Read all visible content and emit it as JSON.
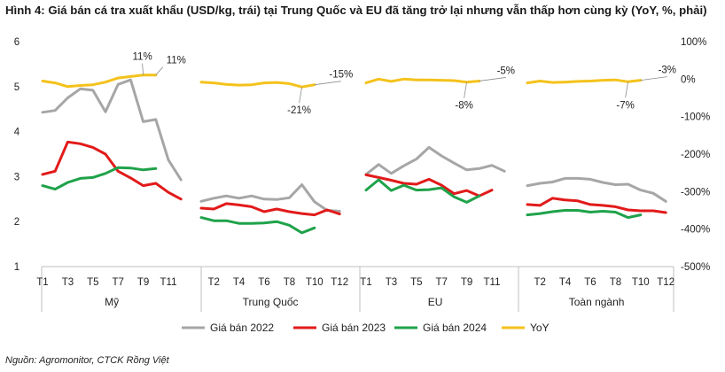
{
  "chart_data": {
    "type": "line",
    "title": "Hình 4: Giá bán cá tra xuất khẩu (USD/kg, trái) tại Trung Quốc và EU đã tăng trở lại nhưng vẫn thấp hơn cùng kỳ (YoY, %, phải)",
    "source": "Nguồn: Agromonitor, CTCK Rồng Việt",
    "y_left": {
      "ticks": [
        "6",
        "5",
        "4",
        "3",
        "2",
        "1"
      ],
      "range": [
        1,
        6
      ]
    },
    "y_right": {
      "ticks": [
        "100%",
        "0%",
        "-100%",
        "-200%",
        "-300%",
        "-400%",
        "-500%"
      ],
      "range": [
        -500,
        100
      ]
    },
    "grid": false,
    "legend_position": "bottom",
    "panels": [
      {
        "name": "Mỹ",
        "month_ticks": [
          "T1",
          "T3",
          "T5",
          "T7",
          "T9",
          "T11"
        ],
        "tick_months": [
          1,
          3,
          5,
          7,
          9,
          11
        ],
        "series": {
          "Giá bán 2022": [
            4.43,
            4.47,
            4.75,
            4.95,
            4.92,
            4.44,
            5.05,
            5.15,
            4.22,
            4.27,
            3.37,
            2.93
          ],
          "Giá bán 2023": [
            3.05,
            3.12,
            3.77,
            3.73,
            3.65,
            3.5,
            3.12,
            2.97,
            2.8,
            2.85,
            2.65,
            2.5
          ],
          "Giá bán 2024": [
            2.8,
            2.72,
            2.87,
            2.96,
            2.98,
            3.07,
            3.2,
            3.19,
            3.15,
            3.18,
            null,
            null
          ],
          "YoY": [
            -5,
            -10,
            -20,
            -17,
            -15,
            -8,
            3,
            7,
            11,
            11,
            null,
            null
          ]
        },
        "annotations": [
          {
            "text": "11%",
            "month": 9,
            "value": 11
          },
          {
            "text": "11%",
            "month": 10,
            "value": 11
          }
        ]
      },
      {
        "name": "Trung Quốc",
        "month_ticks": [
          "T2",
          "T4",
          "T6",
          "T8",
          "T10",
          "T12"
        ],
        "tick_months": [
          2,
          4,
          6,
          8,
          10,
          12
        ],
        "series": {
          "Giá bán 2022": [
            2.45,
            2.52,
            2.57,
            2.52,
            2.57,
            2.5,
            2.49,
            2.53,
            2.82,
            2.44,
            2.25,
            2.23
          ],
          "Giá bán 2023": [
            2.3,
            2.28,
            2.4,
            2.37,
            2.33,
            2.22,
            2.28,
            2.22,
            2.18,
            2.15,
            2.26,
            2.17
          ],
          "Giá bán 2024": [
            2.09,
            2.02,
            2.02,
            1.96,
            1.96,
            1.97,
            2.0,
            1.92,
            1.75,
            1.86,
            null,
            null
          ],
          "YoY": [
            -8,
            -10,
            -14,
            -16,
            -15,
            -10,
            -9,
            -12,
            -21,
            -15,
            null,
            null
          ]
        },
        "annotations": [
          {
            "text": "-21%",
            "month": 9,
            "value": -21
          },
          {
            "text": "-15%",
            "month": 10,
            "value": -15
          }
        ]
      },
      {
        "name": "EU",
        "month_ticks": [
          "T1",
          "T3",
          "T5",
          "T7",
          "T9",
          "T11"
        ],
        "tick_months": [
          1,
          3,
          5,
          7,
          9,
          11
        ],
        "series": {
          "Giá bán 2022": [
            3.05,
            3.27,
            3.07,
            3.24,
            3.39,
            3.65,
            3.46,
            3.3,
            3.15,
            3.18,
            3.25,
            3.12
          ],
          "Giá bán 2023": [
            3.04,
            2.98,
            2.92,
            2.85,
            2.83,
            2.94,
            2.81,
            2.62,
            2.69,
            2.57,
            2.7,
            null
          ],
          "Giá bán 2024": [
            2.7,
            2.93,
            2.69,
            2.81,
            2.7,
            2.71,
            2.75,
            2.55,
            2.43,
            2.57,
            null,
            null
          ],
          "YoY": [
            -10,
            0,
            -6,
            0,
            -2,
            -2,
            -3,
            -4,
            -8,
            -5,
            null,
            null
          ]
        },
        "annotations": [
          {
            "text": "-8%",
            "month": 9,
            "value": -8
          },
          {
            "text": "-5%",
            "month": 10,
            "value": -5
          }
        ]
      },
      {
        "name": "Toàn ngành",
        "month_ticks": [
          "T2",
          "T4",
          "T6",
          "T8",
          "T10",
          "T12"
        ],
        "tick_months": [
          2,
          4,
          6,
          8,
          10,
          12
        ],
        "series": {
          "Giá bán 2022": [
            2.8,
            2.85,
            2.88,
            2.96,
            2.96,
            2.94,
            2.87,
            2.82,
            2.83,
            2.7,
            2.63,
            2.45
          ],
          "Giá bán 2023": [
            2.38,
            2.36,
            2.52,
            2.48,
            2.46,
            2.38,
            2.36,
            2.33,
            2.26,
            2.24,
            2.24,
            2.2
          ],
          "Giá bán 2024": [
            2.15,
            2.18,
            2.22,
            2.25,
            2.25,
            2.21,
            2.23,
            2.21,
            2.09,
            2.15,
            null,
            null
          ],
          "YoY": [
            -10,
            -5,
            -9,
            -8,
            -6,
            -5,
            -3,
            -2,
            -7,
            -3,
            null,
            null
          ]
        },
        "annotations": [
          {
            "text": "-7%",
            "month": 9,
            "value": -7
          },
          {
            "text": "-3%",
            "month": 10,
            "value": -3
          }
        ]
      }
    ],
    "legend": [
      {
        "name": "Giá bán 2022",
        "color": "#a6a6a6"
      },
      {
        "name": "Giá bán 2023",
        "color": "#e21a1a"
      },
      {
        "name": "Giá bán 2024",
        "color": "#1fa24a"
      },
      {
        "name": "YoY",
        "color": "#f4c21b"
      }
    ]
  }
}
